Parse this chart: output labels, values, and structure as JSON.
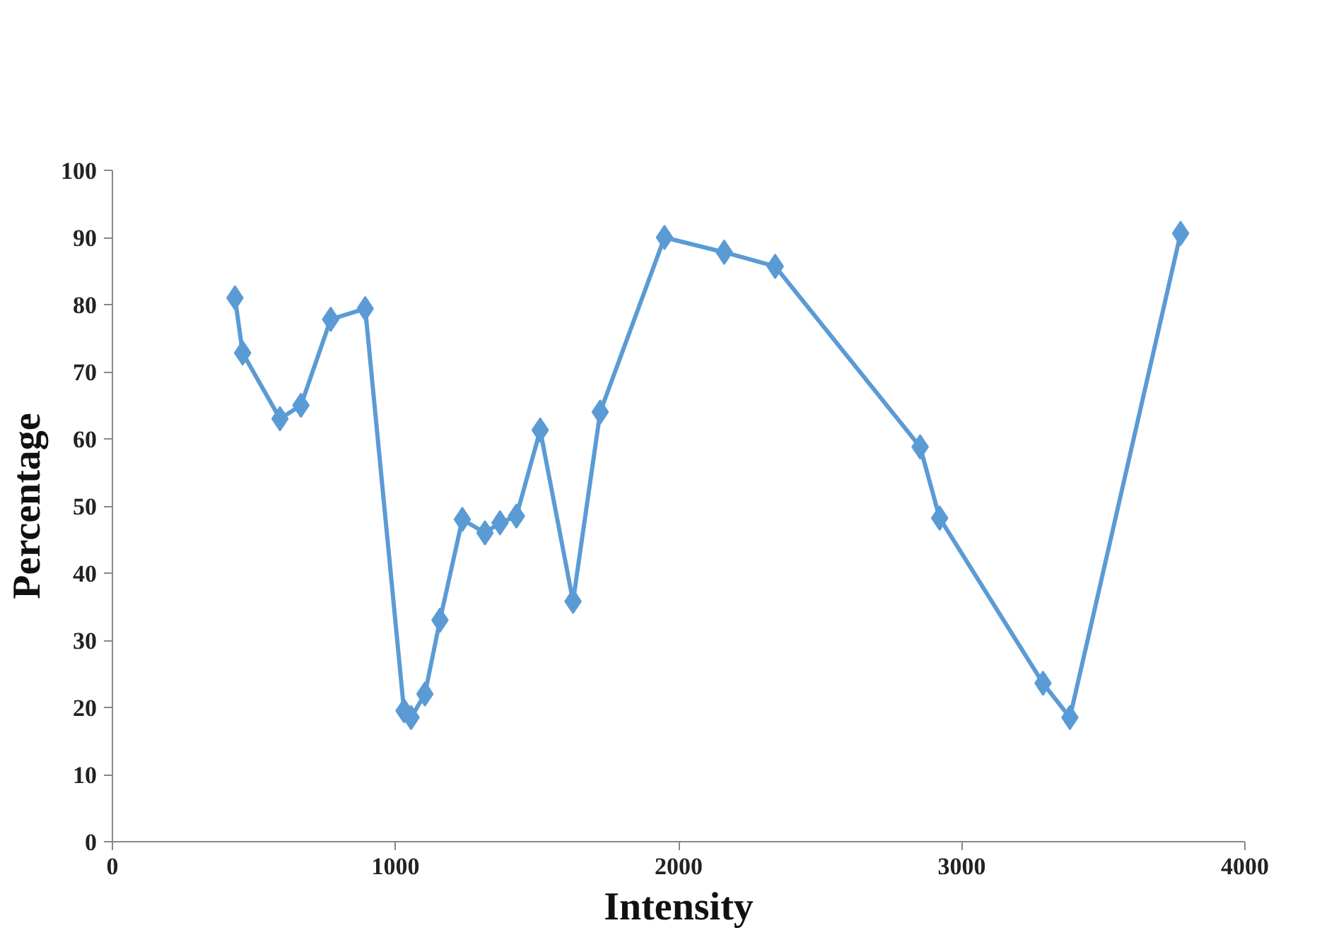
{
  "chart_data": {
    "type": "line",
    "xlabel": "Intensity",
    "ylabel": "Percentage",
    "series": [
      {
        "color": "#5b9bd5",
        "x": [
          433,
          460,
          592,
          666,
          771,
          893,
          1030,
          1055,
          1104,
          1157,
          1236,
          1316,
          1369,
          1427,
          1511,
          1627,
          1723,
          1950,
          2161,
          2341,
          2853,
          2922,
          3287,
          3382,
          3773
        ],
        "values": [
          81,
          72.8,
          63,
          65,
          77.8,
          79.4,
          19.5,
          18.5,
          22,
          33,
          48,
          46,
          47.5,
          48.5,
          61.3,
          35.8,
          64,
          90,
          87.8,
          85.7,
          58.8,
          48.2,
          23.6,
          18.5,
          90.6
        ]
      }
    ],
    "xlim": [
      0,
      4000
    ],
    "xticks": [
      0,
      1000,
      2000,
      3000,
      4000
    ],
    "ylim": [
      0,
      100
    ],
    "yticks": [
      0,
      10,
      20,
      30,
      40,
      50,
      60,
      70,
      80,
      90,
      100
    ],
    "marker": "diamond",
    "line_style": "solid"
  }
}
